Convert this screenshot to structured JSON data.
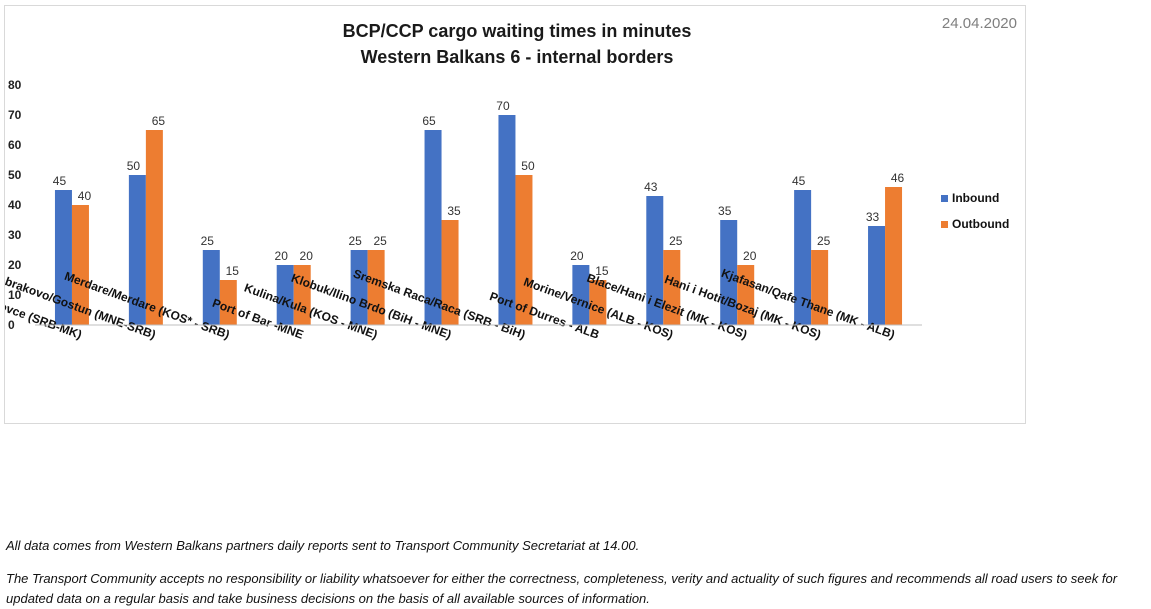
{
  "chart_data": {
    "type": "bar",
    "title": [
      "BCP/CCP cargo waiting times in minutes",
      "Western Balkans 6 - internal borders"
    ],
    "date": "24.04.2020",
    "categories": [
      "Presevo/ Tabanovce (SRB-MK)",
      "Dobrakovo/Gostun (MNE-SRB)",
      "Merdare/Merdare (KOS* - SRB)",
      "Port of Bar -MNE",
      "Kulina/Kula (KOS - MNE)",
      "Klobuk/Ilino Brdo (BiH - MNE)",
      "Sremska Raca/Raca (SRB - BiH)",
      "Port of Durres - ALB",
      "Morine/Vernice (ALB - KOS)",
      "Blace/Hani i Elezit (MK - KOS)",
      "Hani i Hotit/Bozaj (MK - KOS)",
      "Kjafasan/Qafe Thane (MK - ALB)"
    ],
    "series": [
      {
        "name": "Inbound",
        "color": "#4472c4",
        "values": [
          45,
          50,
          25,
          20,
          25,
          65,
          70,
          20,
          43,
          35,
          45,
          33
        ]
      },
      {
        "name": "Outbound",
        "color": "#ed7d31",
        "values": [
          40,
          65,
          15,
          20,
          25,
          35,
          50,
          15,
          25,
          20,
          25,
          46
        ]
      }
    ],
    "ylim": [
      0,
      80
    ],
    "yticks": [
      0,
      10,
      20,
      30,
      40,
      50,
      60,
      70,
      80
    ],
    "grid": false,
    "legend": "right"
  },
  "notes": {
    "source": "All data comes from Western Balkans partners daily reports sent to Transport Community Secretariat at 14.00.",
    "disclaimer": "The Transport Community accepts no responsibility or liability whatsoever for either the correctness, completeness, verity and actuality of such figures and recommends all road users to seek for updated data on a regular basis and take business decisions on the basis of all available sources of information."
  }
}
